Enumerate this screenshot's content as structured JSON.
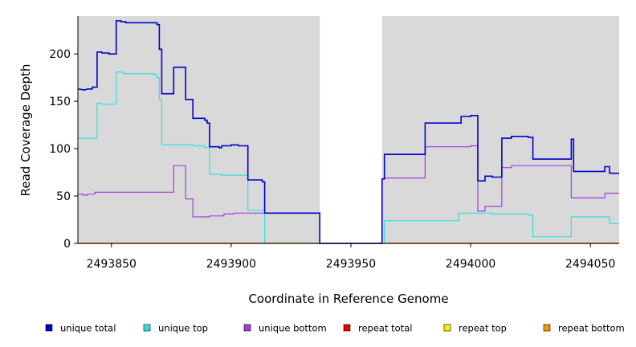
{
  "chart_data": {
    "type": "line",
    "title": "",
    "xlabel": "Coordinate in Reference Genome",
    "ylabel": "Read Coverage Depth",
    "xlim": [
      2493836,
      2494062
    ],
    "ylim": [
      0,
      240
    ],
    "x_ticks": [
      2493850,
      2493900,
      2493950,
      2494000,
      2494050
    ],
    "x_tick_labels": [
      "2493850",
      "2493900",
      "2493950",
      "2494000",
      "2494050"
    ],
    "y_ticks": [
      0,
      50,
      100,
      150,
      200
    ],
    "y_tick_labels": [
      "0",
      "50",
      "100",
      "150",
      "200"
    ],
    "grid": false,
    "legend_position": "bottom",
    "gap_region": [
      2493937,
      2493963
    ],
    "series": [
      {
        "name": "unique total",
        "color": "#0000cc",
        "points": [
          [
            2493836,
            163
          ],
          [
            2493839,
            162
          ],
          [
            2493840,
            163
          ],
          [
            2493842,
            163
          ],
          [
            2493842,
            165
          ],
          [
            2493844,
            165
          ],
          [
            2493844,
            202
          ],
          [
            2493846,
            202
          ],
          [
            2493846,
            201
          ],
          [
            2493849,
            201
          ],
          [
            2493849,
            200
          ],
          [
            2493852,
            200
          ],
          [
            2493852,
            235
          ],
          [
            2493854,
            235
          ],
          [
            2493854,
            234
          ],
          [
            2493856,
            234
          ],
          [
            2493856,
            233
          ],
          [
            2493869,
            233
          ],
          [
            2493869,
            231
          ],
          [
            2493870,
            231
          ],
          [
            2493870,
            205
          ],
          [
            2493871,
            205
          ],
          [
            2493871,
            158
          ],
          [
            2493876,
            158
          ],
          [
            2493876,
            186
          ],
          [
            2493881,
            186
          ],
          [
            2493881,
            152
          ],
          [
            2493884,
            152
          ],
          [
            2493884,
            132
          ],
          [
            2493889,
            132
          ],
          [
            2493889,
            130
          ],
          [
            2493890,
            130
          ],
          [
            2493890,
            127
          ],
          [
            2493891,
            127
          ],
          [
            2493891,
            102
          ],
          [
            2493895,
            102
          ],
          [
            2493895,
            101
          ],
          [
            2493896,
            101
          ],
          [
            2493896,
            103
          ],
          [
            2493900,
            103
          ],
          [
            2493900,
            104
          ],
          [
            2493903,
            104
          ],
          [
            2493903,
            103
          ],
          [
            2493907,
            103
          ],
          [
            2493907,
            67
          ],
          [
            2493913,
            67
          ],
          [
            2493913,
            65
          ],
          [
            2493914,
            65
          ],
          [
            2493914,
            32
          ],
          [
            2493937,
            32
          ],
          [
            2493937,
            0
          ],
          [
            2493963,
            0
          ],
          [
            2493963,
            68
          ],
          [
            2493964,
            68
          ],
          [
            2493964,
            94
          ],
          [
            2493981,
            94
          ],
          [
            2493981,
            127
          ],
          [
            2493996,
            127
          ],
          [
            2493996,
            134
          ],
          [
            2494000,
            134
          ],
          [
            2494000,
            135
          ],
          [
            2494003,
            135
          ],
          [
            2494003,
            66
          ],
          [
            2494006,
            66
          ],
          [
            2494006,
            71
          ],
          [
            2494009,
            71
          ],
          [
            2494009,
            70
          ],
          [
            2494013,
            70
          ],
          [
            2494013,
            111
          ],
          [
            2494017,
            111
          ],
          [
            2494017,
            113
          ],
          [
            2494024,
            113
          ],
          [
            2494024,
            112
          ],
          [
            2494026,
            112
          ],
          [
            2494026,
            89
          ],
          [
            2494042,
            89
          ],
          [
            2494042,
            110
          ],
          [
            2494043,
            110
          ],
          [
            2494043,
            76
          ],
          [
            2494056,
            76
          ],
          [
            2494056,
            81
          ],
          [
            2494058,
            81
          ],
          [
            2494058,
            74
          ],
          [
            2494062,
            74
          ]
        ]
      },
      {
        "name": "unique top",
        "color": "#33e0e0",
        "points": [
          [
            2493836,
            111
          ],
          [
            2493844,
            111
          ],
          [
            2493844,
            148
          ],
          [
            2493846,
            148
          ],
          [
            2493846,
            147
          ],
          [
            2493852,
            147
          ],
          [
            2493852,
            181
          ],
          [
            2493855,
            181
          ],
          [
            2493855,
            179
          ],
          [
            2493868,
            179
          ],
          [
            2493868,
            178
          ],
          [
            2493869,
            178
          ],
          [
            2493869,
            175
          ],
          [
            2493870,
            175
          ],
          [
            2493870,
            152
          ],
          [
            2493871,
            152
          ],
          [
            2493871,
            104
          ],
          [
            2493884,
            104
          ],
          [
            2493884,
            103
          ],
          [
            2493889,
            103
          ],
          [
            2493889,
            101
          ],
          [
            2493891,
            101
          ],
          [
            2493891,
            73
          ],
          [
            2493896,
            73
          ],
          [
            2493896,
            72
          ],
          [
            2493907,
            72
          ],
          [
            2493907,
            35
          ],
          [
            2493914,
            35
          ],
          [
            2493914,
            0
          ],
          [
            2493937,
            0
          ],
          [
            2493963,
            0
          ],
          [
            2493964,
            0
          ],
          [
            2493964,
            24
          ],
          [
            2493995,
            24
          ],
          [
            2493995,
            32
          ],
          [
            2494009,
            32
          ],
          [
            2494009,
            31
          ],
          [
            2494024,
            31
          ],
          [
            2494024,
            30
          ],
          [
            2494026,
            30
          ],
          [
            2494026,
            7
          ],
          [
            2494042,
            7
          ],
          [
            2494042,
            28
          ],
          [
            2494058,
            28
          ],
          [
            2494058,
            21
          ],
          [
            2494062,
            21
          ]
        ]
      },
      {
        "name": "unique bottom",
        "color": "#a040e0",
        "points": [
          [
            2493836,
            52
          ],
          [
            2493838,
            52
          ],
          [
            2493838,
            51
          ],
          [
            2493840,
            51
          ],
          [
            2493840,
            52
          ],
          [
            2493843,
            52
          ],
          [
            2493843,
            54
          ],
          [
            2493876,
            54
          ],
          [
            2493876,
            82
          ],
          [
            2493881,
            82
          ],
          [
            2493881,
            47
          ],
          [
            2493884,
            47
          ],
          [
            2493884,
            28
          ],
          [
            2493891,
            28
          ],
          [
            2493891,
            29
          ],
          [
            2493897,
            29
          ],
          [
            2493897,
            31
          ],
          [
            2493901,
            31
          ],
          [
            2493901,
            32
          ],
          [
            2493914,
            32
          ],
          [
            2493914,
            32
          ],
          [
            2493937,
            32
          ],
          [
            2493937,
            0
          ],
          [
            2493963,
            0
          ],
          [
            2493963,
            68
          ],
          [
            2493964,
            68
          ],
          [
            2493964,
            69
          ],
          [
            2493981,
            69
          ],
          [
            2493981,
            102
          ],
          [
            2494000,
            102
          ],
          [
            2494000,
            103
          ],
          [
            2494003,
            103
          ],
          [
            2494003,
            34
          ],
          [
            2494006,
            34
          ],
          [
            2494006,
            39
          ],
          [
            2494013,
            39
          ],
          [
            2494013,
            80
          ],
          [
            2494017,
            80
          ],
          [
            2494017,
            82
          ],
          [
            2494042,
            82
          ],
          [
            2494042,
            48
          ],
          [
            2494056,
            48
          ],
          [
            2494056,
            53
          ],
          [
            2494062,
            53
          ]
        ]
      },
      {
        "name": "repeat total",
        "color": "#ee0000",
        "points": [
          [
            2493836,
            0
          ],
          [
            2494062,
            0
          ]
        ]
      },
      {
        "name": "repeat top",
        "color": "#f5f500",
        "points": [
          [
            2493836,
            0
          ],
          [
            2494062,
            0
          ]
        ]
      },
      {
        "name": "repeat bottom",
        "color": "#ee9a00",
        "points": [
          [
            2493836,
            0
          ],
          [
            2494062,
            0
          ]
        ]
      }
    ]
  }
}
